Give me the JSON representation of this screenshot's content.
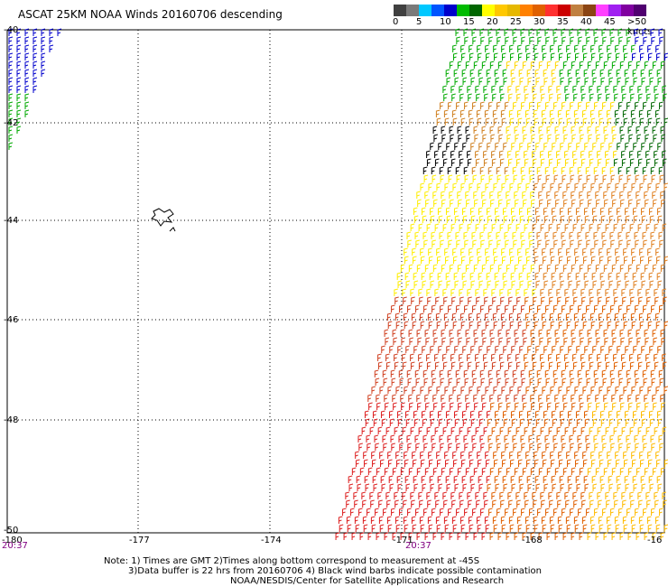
{
  "title": "ASCAT 25KM NOAA Winds 20160706 descending",
  "legend": {
    "labels": [
      "0",
      "5",
      "10",
      "15",
      "20",
      "25",
      "30",
      "35",
      "40",
      "45",
      ">50 knots"
    ],
    "colors": [
      "#404040",
      "#7a7a7a",
      "#00c8ff",
      "#0055ff",
      "#0000cc",
      "#00bb00",
      "#006600",
      "#ffff00",
      "#ffc800",
      "#e6b800",
      "#ff8000",
      "#e06000",
      "#ff3030",
      "#cc0000",
      "#c08040",
      "#8b4513",
      "#ff40ff",
      "#a020f0",
      "#8000a0",
      "#500070"
    ]
  },
  "axes": {
    "lon_labels": [
      "-180",
      "-177",
      "-174",
      "-171",
      "-168",
      "-16"
    ],
    "lat_labels": [
      "-40",
      "-42",
      "-44",
      "-46",
      "-48",
      "-50"
    ],
    "time_labels": [
      "20:37",
      "20:37"
    ]
  },
  "notes": [
    "Note: 1) Times are GMT 2)Times along bottom correspond to measurement at -45S",
    "3)Data buffer is 22 hrs from 20160706 4) Black wind barbs indicate possible contamination",
    "NOAA/NESDIS/Center for Satellite Applications and Research"
  ]
}
